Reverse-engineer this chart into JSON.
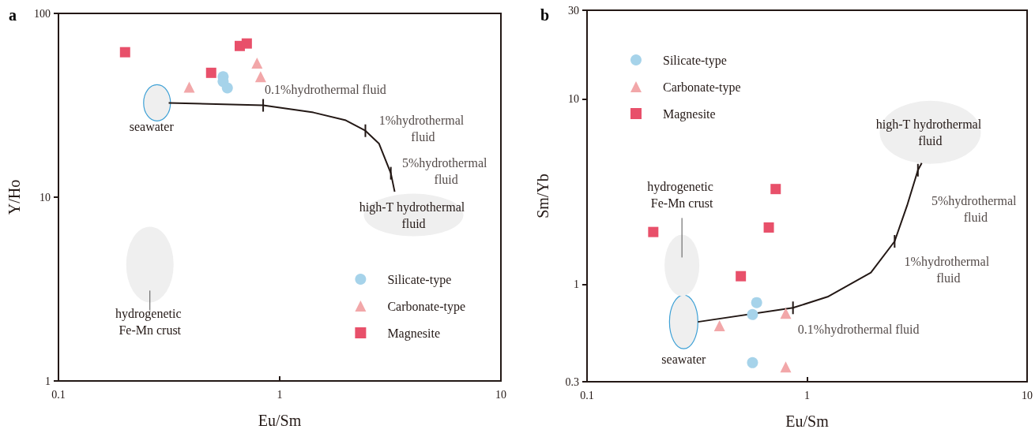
{
  "chart_data": [
    {
      "type": "scatter",
      "title": "a",
      "xlabel": "Eu/Sm",
      "ylabel": "Y/Ho",
      "log": "xy",
      "xlim": [
        0.1,
        10
      ],
      "ylim": [
        1,
        100
      ],
      "xticks": [
        0.1,
        1,
        10
      ],
      "yticks": [
        1,
        10,
        100
      ],
      "legend": "bottom right",
      "series": [
        {
          "name": "Silicate-type",
          "color": "#a6d3ea",
          "marker": "circle",
          "x": [
            0.555,
            0.555,
            0.58
          ],
          "values": [
            45.2,
            42.6,
            39.3
          ]
        },
        {
          "name": "Carbonate-type",
          "color": "#f2a7a9",
          "marker": "triangle",
          "x": [
            0.39,
            0.79,
            0.82
          ],
          "values": [
            39.7,
            53.7,
            45.2
          ]
        },
        {
          "name": "Magnesite",
          "color": "#e8506a",
          "marker": "square",
          "x": [
            0.2,
            0.49,
            0.66,
            0.71
          ],
          "values": [
            61.5,
            47.5,
            66.5,
            68.6
          ]
        },
        {
          "type": "line",
          "color": "#231815",
          "x": [
            0.315,
            0.842,
            1.42,
            1.99,
            2.44,
            2.81,
            3.18,
            3.31
          ],
          "values": [
            32.6,
            31.6,
            28.9,
            26.2,
            23.0,
            19.6,
            13.5,
            10.7
          ]
        }
      ],
      "annotations": [
        {
          "text": "0.1%hydrothermal fluid",
          "x": 0.842,
          "y": 31.6
        },
        {
          "text": "1%hydrothermal fluid",
          "x": 2.44,
          "y": 23.0
        },
        {
          "text": "5%hydrothermal fluid",
          "x": 3.18,
          "y": 13.5
        },
        "seawater",
        "high-T hydrothermal fluid",
        "hydrogenetic Fe-Mn crust"
      ]
    },
    {
      "type": "scatter",
      "title": "b",
      "xlabel": "Eu/Sm",
      "ylabel": "Sm/Yb",
      "log": "xy",
      "xlim": [
        0.1,
        10
      ],
      "ylim": [
        0.3,
        30
      ],
      "xticks": [
        0.1,
        1,
        10
      ],
      "yticks": [
        0.3,
        1,
        10,
        30
      ],
      "legend": "top left",
      "series": [
        {
          "name": "Silicate-type",
          "color": "#a6d3ea",
          "marker": "circle",
          "x": [
            0.59,
            0.565,
            0.565
          ],
          "values": [
            0.8,
            0.69,
            0.38
          ]
        },
        {
          "name": "Carbonate-type",
          "color": "#f2a7a9",
          "marker": "triangle",
          "x": [
            0.4,
            0.8,
            0.8
          ],
          "values": [
            0.6,
            0.7,
            0.36
          ]
        },
        {
          "name": "Magnesite",
          "color": "#e8506a",
          "marker": "square",
          "x": [
            0.72,
            0.2,
            0.67,
            0.5
          ],
          "values": [
            3.27,
            1.92,
            2.03,
            1.11
          ]
        },
        {
          "type": "line",
          "color": "#231815",
          "x": [
            0.319,
            0.863,
            1.24,
            1.95,
            2.5,
            2.85,
            3.19,
            3.32
          ],
          "values": [
            0.63,
            0.75,
            0.86,
            1.16,
            1.71,
            2.67,
            4.13,
            4.51
          ]
        }
      ],
      "annotations": [
        {
          "text": "0.1%hydrothermal fluid",
          "x": 0.863,
          "y": 0.75
        },
        {
          "text": "1%hydrothermal fluid",
          "x": 2.5,
          "y": 1.71
        },
        {
          "text": "5%hydrothermal fluid",
          "x": 3.19,
          "y": 4.13
        },
        "seawater",
        "hydrogenetic Fe-Mn crust",
        "high-T hydrothermal fluid"
      ]
    }
  ]
}
